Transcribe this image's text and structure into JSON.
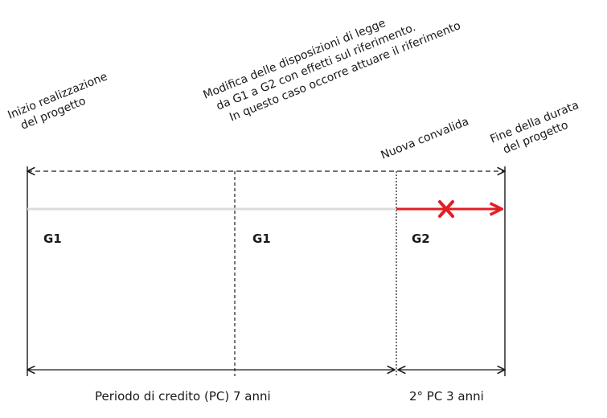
{
  "annotations": {
    "start": [
      "Inizio realizzazione",
      "del progetto"
    ],
    "change": [
      "Modifica delle disposizioni di legge",
      "da G1 a G2 con effetti sul riferimento.",
      "In questo caso occorre attuare il riferimento"
    ],
    "revalidation": "Nuova convalida",
    "end": [
      "Fine della durata",
      "del progetto"
    ]
  },
  "segments": [
    {
      "label": "G1"
    },
    {
      "label": "G1"
    },
    {
      "label": "G2"
    }
  ],
  "periods": {
    "first": "Periodo di credito (PC) 7 anni",
    "second": "2° PC 3 anni"
  },
  "colors": {
    "line": "#1a1a1a",
    "baseline": "#dcdcdc",
    "accent": "#e31e24"
  },
  "icons": {
    "invalid_marker": "cross-icon"
  }
}
